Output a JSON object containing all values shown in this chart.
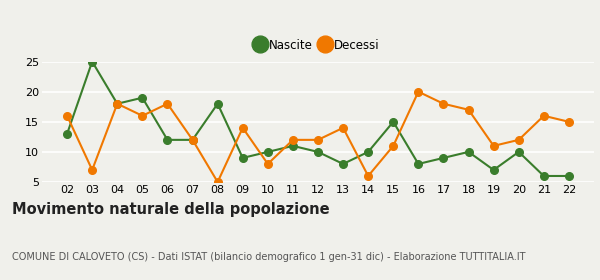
{
  "years": [
    "02",
    "03",
    "04",
    "05",
    "06",
    "07",
    "08",
    "09",
    "10",
    "11",
    "12",
    "13",
    "14",
    "15",
    "16",
    "17",
    "18",
    "19",
    "20",
    "21",
    "22"
  ],
  "nascite": [
    13,
    25,
    18,
    19,
    12,
    12,
    18,
    9,
    10,
    11,
    10,
    8,
    10,
    15,
    8,
    9,
    10,
    7,
    10,
    6,
    6
  ],
  "decessi": [
    16,
    7,
    18,
    16,
    18,
    12,
    5,
    14,
    8,
    12,
    12,
    14,
    6,
    11,
    20,
    18,
    17,
    11,
    12,
    16,
    15
  ],
  "nascite_color": "#3a7d2c",
  "decessi_color": "#f07800",
  "bg_color": "#f0f0eb",
  "title": "Movimento naturale della popolazione",
  "subtitle": "COMUNE DI CALOVETO (CS) - Dati ISTAT (bilancio demografico 1 gen-31 dic) - Elaborazione TUTTITALIA.IT",
  "ylim": [
    5,
    25
  ],
  "yticks": [
    5,
    10,
    15,
    20,
    25
  ],
  "legend_nascite": "Nascite",
  "legend_decessi": "Decessi",
  "title_fontsize": 10.5,
  "subtitle_fontsize": 7.0,
  "legend_fontsize": 8.5,
  "tick_fontsize": 8,
  "linewidth": 1.5,
  "markersize": 5.5
}
